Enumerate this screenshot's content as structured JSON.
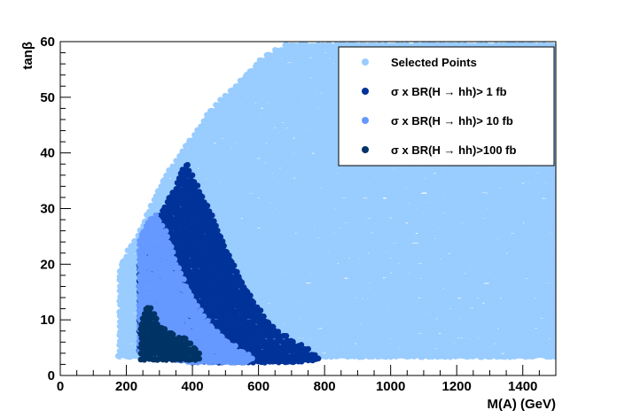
{
  "chart_data": {
    "type": "scatter",
    "xlabel": "M(A) (GeV)",
    "ylabel": "tanβ",
    "xlim": [
      0,
      1500
    ],
    "ylim": [
      0,
      60
    ],
    "x_ticks": [
      0,
      200,
      400,
      600,
      800,
      1000,
      1200,
      1400
    ],
    "y_ticks": [
      0,
      10,
      20,
      30,
      40,
      50,
      60
    ],
    "grid": false,
    "legend_position": "top-right",
    "series": [
      {
        "name": "Selected Points",
        "color": "#99ccff",
        "region": {
          "lower": [
            [
              175,
              3.5
            ],
            [
              1500,
              3.5
            ]
          ],
          "upper": [
            [
              175,
              4
            ],
            [
              175,
              19
            ],
            [
              200,
              22
            ],
            [
              230,
              25
            ],
            [
              270,
              30
            ],
            [
              300,
              34
            ],
            [
              350,
              39
            ],
            [
              400,
              43
            ],
            [
              450,
              47.5
            ],
            [
              500,
              50.5
            ],
            [
              550,
              53.5
            ],
            [
              600,
              56.5
            ],
            [
              650,
              58.5
            ],
            [
              700,
              60
            ],
            [
              1500,
              60
            ]
          ]
        }
      },
      {
        "name": "σ x BR(H → hh)>  1 fb",
        "color": "#003399",
        "region": {
          "lower": [
            [
              240,
              4.5
            ],
            [
              300,
              3.5
            ],
            [
              400,
              2.5
            ],
            [
              500,
              2.5
            ],
            [
              600,
              2.5
            ],
            [
              700,
              2.5
            ],
            [
              780,
              3
            ]
          ],
          "upper": [
            [
              240,
              20
            ],
            [
              260,
              24
            ],
            [
              300,
              29
            ],
            [
              350,
              34
            ],
            [
              380,
              38.5
            ],
            [
              400,
              36
            ],
            [
              450,
              30
            ],
            [
              500,
              23
            ],
            [
              550,
              17
            ],
            [
              600,
              12
            ],
            [
              650,
              8.5
            ],
            [
              700,
              6.5
            ],
            [
              750,
              4.8
            ],
            [
              780,
              3.5
            ]
          ]
        }
      },
      {
        "name": "σ x BR(H → hh)> 10 fb",
        "color": "#6699ff",
        "region": {
          "lower": [
            [
              240,
              4.5
            ],
            [
              300,
              3.5
            ],
            [
              400,
              2.5
            ],
            [
              500,
              2.5
            ],
            [
              560,
              2.5
            ],
            [
              580,
              3.2
            ]
          ],
          "upper": [
            [
              240,
              25
            ],
            [
              270,
              28
            ],
            [
              290,
              29
            ],
            [
              320,
              26
            ],
            [
              350,
              20.5
            ],
            [
              400,
              14
            ],
            [
              450,
              9.5
            ],
            [
              500,
              6.5
            ],
            [
              550,
              4.5
            ],
            [
              580,
              3.5
            ]
          ]
        }
      },
      {
        "name": "σ x BR(H → hh)>100 fb",
        "color": "#003366",
        "region": {
          "lower": [
            [
              245,
              3
            ],
            [
              300,
              3
            ],
            [
              350,
              3
            ],
            [
              400,
              3
            ],
            [
              420,
              3
            ]
          ],
          "upper": [
            [
              245,
              10
            ],
            [
              260,
              12.5
            ],
            [
              280,
              12
            ],
            [
              300,
              9
            ],
            [
              330,
              8
            ],
            [
              360,
              7
            ],
            [
              390,
              6.5
            ],
            [
              420,
              4
            ]
          ]
        }
      }
    ]
  }
}
